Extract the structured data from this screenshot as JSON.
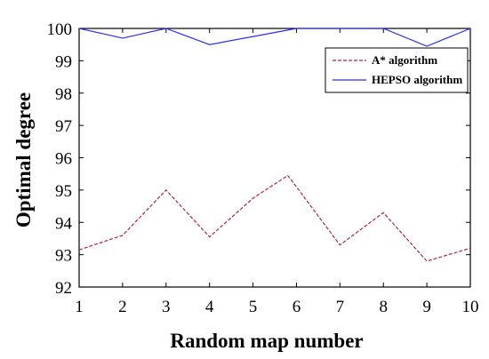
{
  "chart_data": {
    "type": "line",
    "xlabel": "Random map number",
    "ylabel": "Optimal degree",
    "xlim": [
      1,
      10
    ],
    "ylim": [
      92,
      100
    ],
    "x_ticks": [
      1,
      2,
      3,
      4,
      5,
      6,
      7,
      8,
      9,
      10
    ],
    "y_ticks": [
      92,
      93,
      94,
      95,
      96,
      97,
      98,
      99,
      100
    ],
    "grid": false,
    "legend_position": "top-right",
    "series": [
      {
        "name": "A* algorithm",
        "color": "#b22244",
        "style": "dashed",
        "x": [
          1,
          2,
          3,
          4,
          5,
          5.8,
          6,
          7,
          8,
          9,
          10
        ],
        "y": [
          93.15,
          93.6,
          95.0,
          93.55,
          94.75,
          95.45,
          95.1,
          93.3,
          94.3,
          92.8,
          93.2
        ]
      },
      {
        "name": "HEPSO algorithm",
        "color": "#2b2bff",
        "style": "solid",
        "x": [
          1,
          2,
          3,
          4,
          5,
          6,
          7,
          8,
          9,
          10
        ],
        "y": [
          100.0,
          99.7,
          100.0,
          99.5,
          99.75,
          100.0,
          100.0,
          100.0,
          99.45,
          100.0
        ]
      }
    ]
  }
}
